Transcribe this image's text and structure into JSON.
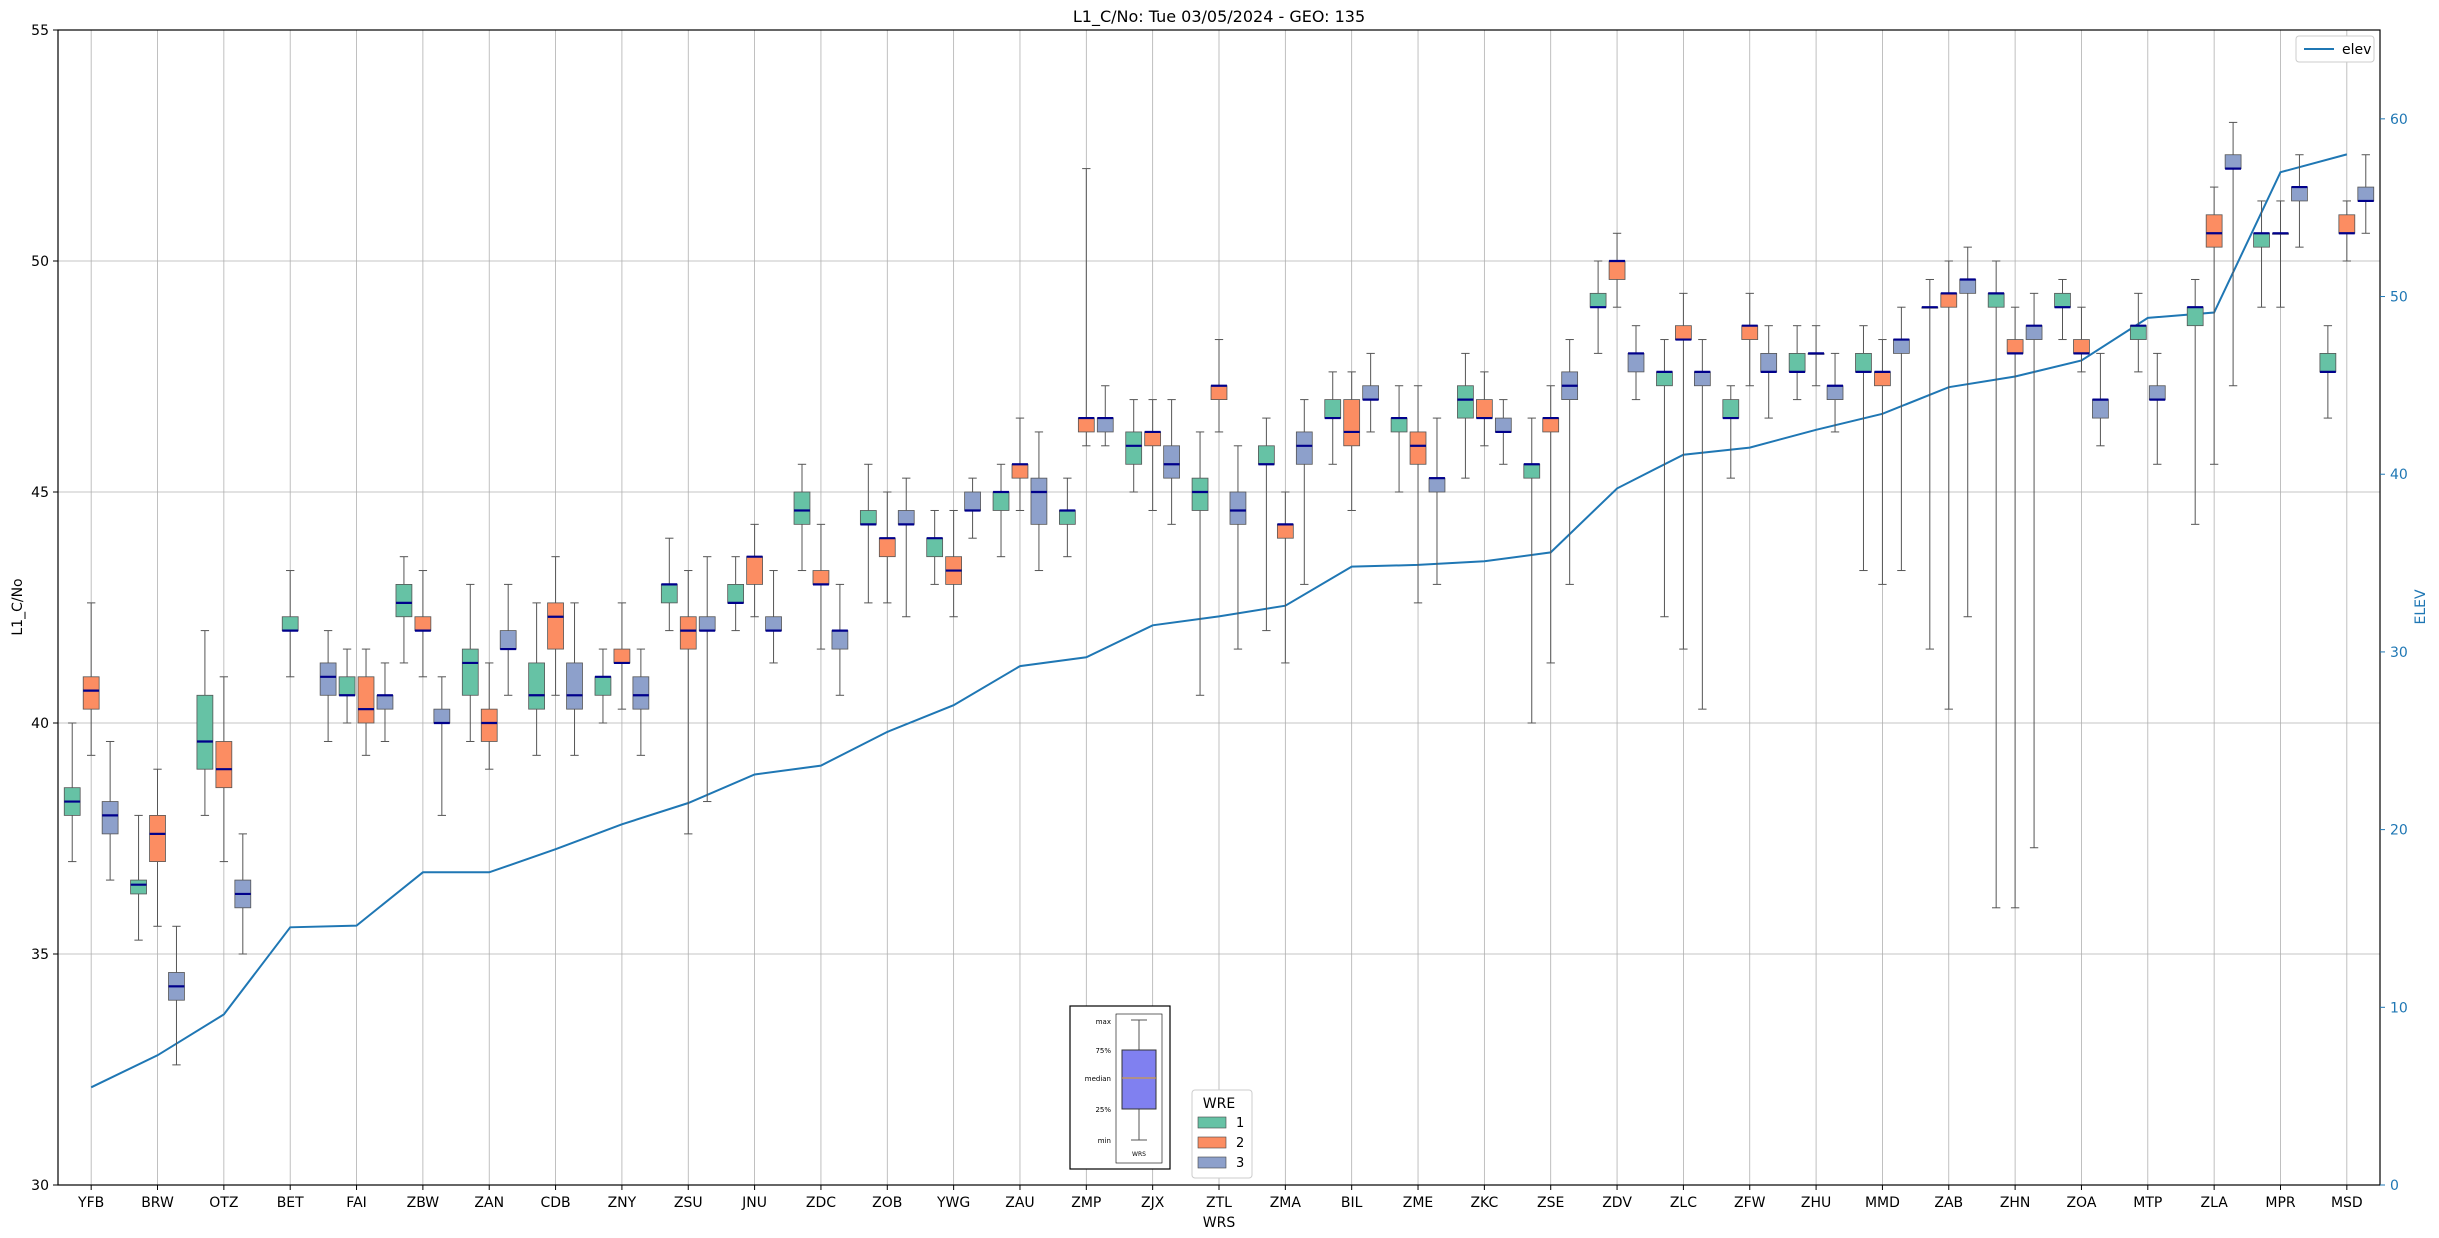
{
  "chart_data": {
    "type": "box",
    "title": "L1_C/No: Tue 03/05/2024 - GEO: 135",
    "xlabel": "WRS",
    "ylabel": "L1_C/No",
    "y2label": "ELEV",
    "ylim": [
      30,
      55
    ],
    "y2lim": [
      0,
      65
    ],
    "yticks": [
      "30",
      "35",
      "40",
      "45",
      "50",
      "55"
    ],
    "y2ticks": [
      "0",
      "10",
      "20",
      "30",
      "40",
      "50",
      "60"
    ],
    "grid": true,
    "categories": [
      "YFB",
      "BRW",
      "OTZ",
      "BET",
      "FAI",
      "ZBW",
      "ZAN",
      "CDB",
      "ZNY",
      "ZSU",
      "JNU",
      "ZDC",
      "ZOB",
      "YWG",
      "ZAU",
      "ZMP",
      "ZJX",
      "ZTL",
      "ZMA",
      "BIL",
      "ZME",
      "ZKC",
      "ZSE",
      "ZDV",
      "ZLC",
      "ZFW",
      "ZHU",
      "MMD",
      "ZAB",
      "ZHN",
      "ZOA",
      "MTP",
      "ZLA",
      "MPR",
      "MSD"
    ],
    "elev_series": {
      "name": "elev",
      "color": "#1f77b4",
      "values": [
        5.5,
        7.3,
        9.6,
        14.5,
        14.6,
        17.6,
        17.6,
        18.9,
        20.3,
        21.5,
        23.1,
        23.6,
        25.5,
        27.0,
        29.2,
        29.7,
        31.5,
        32.0,
        32.6,
        34.8,
        34.9,
        35.1,
        35.6,
        39.2,
        41.1,
        41.5,
        42.5,
        43.4,
        44.9,
        45.5,
        46.4,
        48.8,
        49.1,
        57.0,
        58.0
      ]
    },
    "legend_wre": {
      "title": "WRE",
      "entries": [
        {
          "label": "1",
          "color": "#66c2a5"
        },
        {
          "label": "2",
          "color": "#fc8d62"
        },
        {
          "label": "3",
          "color": "#8da0cb"
        }
      ],
      "placement": "bottom-center"
    },
    "legend_elev": {
      "label": "elev",
      "placement": "top-right"
    },
    "key_labels": [
      "max",
      "75%",
      "median",
      "25%",
      "min",
      "WRS"
    ],
    "boxes": [
      {
        "station": "YFB",
        "wre": 1,
        "min": 37.0,
        "q1": 38.0,
        "median": 38.3,
        "q3": 38.6,
        "max": 40.0
      },
      {
        "station": "YFB",
        "wre": 2,
        "min": 39.3,
        "q1": 40.3,
        "median": 40.7,
        "q3": 41.0,
        "max": 42.6
      },
      {
        "station": "YFB",
        "wre": 3,
        "min": 36.6,
        "q1": 37.6,
        "median": 38.0,
        "q3": 38.3,
        "max": 39.6
      },
      {
        "station": "BRW",
        "wre": 1,
        "min": 35.3,
        "q1": 36.3,
        "median": 36.5,
        "q3": 36.6,
        "max": 38.0
      },
      {
        "station": "BRW",
        "wre": 2,
        "min": 35.6,
        "q1": 37.0,
        "median": 37.6,
        "q3": 38.0,
        "max": 39.0
      },
      {
        "station": "BRW",
        "wre": 3,
        "min": 32.6,
        "q1": 34.0,
        "median": 34.3,
        "q3": 34.6,
        "max": 35.6
      },
      {
        "station": "OTZ",
        "wre": 1,
        "min": 38.0,
        "q1": 39.0,
        "median": 39.6,
        "q3": 40.6,
        "max": 42.0
      },
      {
        "station": "OTZ",
        "wre": 2,
        "min": 37.0,
        "q1": 38.6,
        "median": 39.0,
        "q3": 39.6,
        "max": 41.0
      },
      {
        "station": "OTZ",
        "wre": 3,
        "min": 35.0,
        "q1": 36.0,
        "median": 36.3,
        "q3": 36.6,
        "max": 37.6
      },
      {
        "station": "BET",
        "wre": 1,
        "min": 41.0,
        "q1": 42.0,
        "median": 42.0,
        "q3": 42.3,
        "max": 43.3
      },
      {
        "station": "FAI",
        "wre": 3,
        "min": 39.6,
        "q1": 40.6,
        "median": 41.0,
        "q3": 41.3,
        "max": 42.0
      },
      {
        "station": "FAI",
        "wre": 1,
        "min": 40.0,
        "q1": 40.6,
        "median": 40.6,
        "q3": 41.0,
        "max": 41.6
      },
      {
        "station": "FAI",
        "wre": 2,
        "min": 39.3,
        "q1": 40.0,
        "median": 40.3,
        "q3": 41.0,
        "max": 41.6
      },
      {
        "station": "FAI",
        "wre": 3,
        "min": 39.6,
        "q1": 40.3,
        "median": 40.6,
        "q3": 40.6,
        "max": 41.3
      },
      {
        "station": "ZBW",
        "wre": 1,
        "min": 41.3,
        "q1": 42.3,
        "median": 42.6,
        "q3": 43.0,
        "max": 43.6
      },
      {
        "station": "ZBW",
        "wre": 2,
        "min": 41.0,
        "q1": 42.0,
        "median": 42.0,
        "q3": 42.3,
        "max": 43.3
      },
      {
        "station": "ZBW",
        "wre": 3,
        "min": 38.0,
        "q1": 40.0,
        "median": 40.0,
        "q3": 40.3,
        "max": 41.0
      },
      {
        "station": "ZAN",
        "wre": 1,
        "min": 39.6,
        "q1": 40.6,
        "median": 41.3,
        "q3": 41.6,
        "max": 43.0
      },
      {
        "station": "ZAN",
        "wre": 2,
        "min": 39.0,
        "q1": 39.6,
        "median": 40.0,
        "q3": 40.3,
        "max": 41.3
      },
      {
        "station": "ZAN",
        "wre": 3,
        "min": 40.6,
        "q1": 41.6,
        "median": 41.6,
        "q3": 42.0,
        "max": 43.0
      },
      {
        "station": "CDB",
        "wre": 1,
        "min": 39.3,
        "q1": 40.3,
        "median": 40.6,
        "q3": 41.3,
        "max": 42.6
      },
      {
        "station": "CDB",
        "wre": 2,
        "min": 40.6,
        "q1": 41.6,
        "median": 42.3,
        "q3": 42.6,
        "max": 43.6
      },
      {
        "station": "CDB",
        "wre": 3,
        "min": 39.3,
        "q1": 40.3,
        "median": 40.6,
        "q3": 41.3,
        "max": 42.6
      },
      {
        "station": "ZNY",
        "wre": 1,
        "min": 40.0,
        "q1": 40.6,
        "median": 41.0,
        "q3": 41.0,
        "max": 41.6
      },
      {
        "station": "ZNY",
        "wre": 2,
        "min": 40.3,
        "q1": 41.3,
        "median": 41.3,
        "q3": 41.6,
        "max": 42.6
      },
      {
        "station": "ZNY",
        "wre": 3,
        "min": 39.3,
        "q1": 40.3,
        "median": 40.6,
        "q3": 41.0,
        "max": 41.6
      },
      {
        "station": "ZSU",
        "wre": 1,
        "min": 42.0,
        "q1": 42.6,
        "median": 43.0,
        "q3": 43.0,
        "max": 44.0
      },
      {
        "station": "ZSU",
        "wre": 2,
        "min": 37.6,
        "q1": 41.6,
        "median": 42.0,
        "q3": 42.3,
        "max": 43.3
      },
      {
        "station": "ZSU",
        "wre": 3,
        "min": 38.3,
        "q1": 42.0,
        "median": 42.0,
        "q3": 42.3,
        "max": 43.6
      },
      {
        "station": "JNU",
        "wre": 1,
        "min": 42.0,
        "q1": 42.6,
        "median": 42.6,
        "q3": 43.0,
        "max": 43.6
      },
      {
        "station": "JNU",
        "wre": 2,
        "min": 42.3,
        "q1": 43.0,
        "median": 43.6,
        "q3": 43.6,
        "max": 44.3
      },
      {
        "station": "JNU",
        "wre": 3,
        "min": 41.3,
        "q1": 42.0,
        "median": 42.0,
        "q3": 42.3,
        "max": 43.3
      },
      {
        "station": "ZDC",
        "wre": 1,
        "min": 43.3,
        "q1": 44.3,
        "median": 44.6,
        "q3": 45.0,
        "max": 45.6
      },
      {
        "station": "ZDC",
        "wre": 2,
        "min": 41.6,
        "q1": 43.0,
        "median": 43.0,
        "q3": 43.3,
        "max": 44.3
      },
      {
        "station": "ZDC",
        "wre": 3,
        "min": 40.6,
        "q1": 41.6,
        "median": 42.0,
        "q3": 42.0,
        "max": 43.0
      },
      {
        "station": "ZOB",
        "wre": 1,
        "min": 42.6,
        "q1": 44.3,
        "median": 44.3,
        "q3": 44.6,
        "max": 45.6
      },
      {
        "station": "ZOB",
        "wre": 2,
        "min": 42.6,
        "q1": 43.6,
        "median": 44.0,
        "q3": 44.0,
        "max": 45.0
      },
      {
        "station": "ZOB",
        "wre": 3,
        "min": 42.3,
        "q1": 44.3,
        "median": 44.3,
        "q3": 44.6,
        "max": 45.3
      },
      {
        "station": "YWG",
        "wre": 1,
        "min": 43.0,
        "q1": 43.6,
        "median": 44.0,
        "q3": 44.0,
        "max": 44.6
      },
      {
        "station": "YWG",
        "wre": 2,
        "min": 42.3,
        "q1": 43.0,
        "median": 43.3,
        "q3": 43.6,
        "max": 44.6
      },
      {
        "station": "YWG",
        "wre": 3,
        "min": 44.0,
        "q1": 44.6,
        "median": 44.6,
        "q3": 45.0,
        "max": 45.3
      },
      {
        "station": "ZAU",
        "wre": 1,
        "min": 43.6,
        "q1": 44.6,
        "median": 45.0,
        "q3": 45.0,
        "max": 45.6
      },
      {
        "station": "ZAU",
        "wre": 2,
        "min": 44.6,
        "q1": 45.3,
        "median": 45.6,
        "q3": 45.6,
        "max": 46.6
      },
      {
        "station": "ZAU",
        "wre": 3,
        "min": 43.3,
        "q1": 44.3,
        "median": 45.0,
        "q3": 45.3,
        "max": 46.3
      },
      {
        "station": "ZMP",
        "wre": 1,
        "min": 43.6,
        "q1": 44.3,
        "median": 44.6,
        "q3": 44.6,
        "max": 45.3
      },
      {
        "station": "ZMP",
        "wre": 2,
        "min": 46.0,
        "q1": 46.3,
        "median": 46.6,
        "q3": 46.6,
        "max": 52.0
      },
      {
        "station": "ZMP",
        "wre": 3,
        "min": 46.0,
        "q1": 46.3,
        "median": 46.6,
        "q3": 46.6,
        "max": 47.3
      },
      {
        "station": "ZJX",
        "wre": 1,
        "min": 45.0,
        "q1": 45.6,
        "median": 46.0,
        "q3": 46.3,
        "max": 47.0
      },
      {
        "station": "ZJX",
        "wre": 2,
        "min": 44.6,
        "q1": 46.0,
        "median": 46.3,
        "q3": 46.3,
        "max": 47.0
      },
      {
        "station": "ZJX",
        "wre": 3,
        "min": 44.3,
        "q1": 45.3,
        "median": 45.6,
        "q3": 46.0,
        "max": 47.0
      },
      {
        "station": "ZTL",
        "wre": 1,
        "min": 40.6,
        "q1": 44.6,
        "median": 45.0,
        "q3": 45.3,
        "max": 46.3
      },
      {
        "station": "ZTL",
        "wre": 2,
        "min": 46.3,
        "q1": 47.0,
        "median": 47.3,
        "q3": 47.3,
        "max": 48.3
      },
      {
        "station": "ZTL",
        "wre": 3,
        "min": 41.6,
        "q1": 44.3,
        "median": 44.6,
        "q3": 45.0,
        "max": 46.0
      },
      {
        "station": "ZMA",
        "wre": 1,
        "min": 42.0,
        "q1": 45.6,
        "median": 45.6,
        "q3": 46.0,
        "max": 46.6
      },
      {
        "station": "ZMA",
        "wre": 2,
        "min": 41.3,
        "q1": 44.0,
        "median": 44.3,
        "q3": 44.3,
        "max": 45.0
      },
      {
        "station": "ZMA",
        "wre": 3,
        "min": 43.0,
        "q1": 45.6,
        "median": 46.0,
        "q3": 46.3,
        "max": 47.0
      },
      {
        "station": "BIL",
        "wre": 1,
        "min": 45.6,
        "q1": 46.6,
        "median": 46.6,
        "q3": 47.0,
        "max": 47.6
      },
      {
        "station": "BIL",
        "wre": 2,
        "min": 44.6,
        "q1": 46.0,
        "median": 46.3,
        "q3": 47.0,
        "max": 47.6
      },
      {
        "station": "BIL",
        "wre": 3,
        "min": 46.3,
        "q1": 47.0,
        "median": 47.0,
        "q3": 47.3,
        "max": 48.0
      },
      {
        "station": "ZME",
        "wre": 1,
        "min": 45.0,
        "q1": 46.3,
        "median": 46.6,
        "q3": 46.6,
        "max": 47.3
      },
      {
        "station": "ZME",
        "wre": 2,
        "min": 42.6,
        "q1": 45.6,
        "median": 46.0,
        "q3": 46.3,
        "max": 47.3
      },
      {
        "station": "ZME",
        "wre": 3,
        "min": 43.0,
        "q1": 45.0,
        "median": 45.3,
        "q3": 45.3,
        "max": 46.6
      },
      {
        "station": "ZKC",
        "wre": 1,
        "min": 45.3,
        "q1": 46.6,
        "median": 47.0,
        "q3": 47.3,
        "max": 48.0
      },
      {
        "station": "ZKC",
        "wre": 2,
        "min": 46.0,
        "q1": 46.6,
        "median": 46.6,
        "q3": 47.0,
        "max": 47.6
      },
      {
        "station": "ZKC",
        "wre": 3,
        "min": 45.6,
        "q1": 46.3,
        "median": 46.3,
        "q3": 46.6,
        "max": 47.0
      },
      {
        "station": "ZSE",
        "wre": 1,
        "min": 40.0,
        "q1": 45.3,
        "median": 45.6,
        "q3": 45.6,
        "max": 46.6
      },
      {
        "station": "ZSE",
        "wre": 2,
        "min": 41.3,
        "q1": 46.3,
        "median": 46.6,
        "q3": 46.6,
        "max": 47.3
      },
      {
        "station": "ZSE",
        "wre": 3,
        "min": 43.0,
        "q1": 47.0,
        "median": 47.3,
        "q3": 47.6,
        "max": 48.3
      },
      {
        "station": "ZDV",
        "wre": 1,
        "min": 48.0,
        "q1": 49.0,
        "median": 49.0,
        "q3": 49.3,
        "max": 50.0
      },
      {
        "station": "ZDV",
        "wre": 2,
        "min": 49.0,
        "q1": 49.6,
        "median": 50.0,
        "q3": 50.0,
        "max": 50.6
      },
      {
        "station": "ZDV",
        "wre": 3,
        "min": 47.0,
        "q1": 47.6,
        "median": 48.0,
        "q3": 48.0,
        "max": 48.6
      },
      {
        "station": "ZLC",
        "wre": 1,
        "min": 42.3,
        "q1": 47.3,
        "median": 47.6,
        "q3": 47.6,
        "max": 48.3
      },
      {
        "station": "ZLC",
        "wre": 2,
        "min": 41.6,
        "q1": 48.3,
        "median": 48.3,
        "q3": 48.6,
        "max": 49.3
      },
      {
        "station": "ZLC",
        "wre": 3,
        "min": 40.3,
        "q1": 47.3,
        "median": 47.6,
        "q3": 47.6,
        "max": 48.3
      },
      {
        "station": "ZFW",
        "wre": 1,
        "min": 45.3,
        "q1": 46.6,
        "median": 46.6,
        "q3": 47.0,
        "max": 47.3
      },
      {
        "station": "ZFW",
        "wre": 2,
        "min": 47.3,
        "q1": 48.3,
        "median": 48.6,
        "q3": 48.6,
        "max": 49.3
      },
      {
        "station": "ZFW",
        "wre": 3,
        "min": 46.6,
        "q1": 47.6,
        "median": 47.6,
        "q3": 48.0,
        "max": 48.6
      },
      {
        "station": "ZHU",
        "wre": 1,
        "min": 47.0,
        "q1": 47.6,
        "median": 47.6,
        "q3": 48.0,
        "max": 48.6
      },
      {
        "station": "ZHU",
        "wre": 2,
        "min": 47.3,
        "q1": 48.0,
        "median": 48.0,
        "q3": 48.0,
        "max": 48.6
      },
      {
        "station": "ZHU",
        "wre": 3,
        "min": 46.3,
        "q1": 47.0,
        "median": 47.3,
        "q3": 47.3,
        "max": 48.0
      },
      {
        "station": "MMD",
        "wre": 1,
        "min": 43.3,
        "q1": 47.6,
        "median": 47.6,
        "q3": 48.0,
        "max": 48.6
      },
      {
        "station": "MMD",
        "wre": 2,
        "min": 43.0,
        "q1": 47.3,
        "median": 47.6,
        "q3": 47.6,
        "max": 48.3
      },
      {
        "station": "MMD",
        "wre": 3,
        "min": 43.3,
        "q1": 48.0,
        "median": 48.3,
        "q3": 48.3,
        "max": 49.0
      },
      {
        "station": "ZAB",
        "wre": 1,
        "min": 41.6,
        "q1": 49.0,
        "median": 49.0,
        "q3": 49.0,
        "max": 49.6
      },
      {
        "station": "ZAB",
        "wre": 2,
        "min": 40.3,
        "q1": 49.0,
        "median": 49.3,
        "q3": 49.3,
        "max": 50.0
      },
      {
        "station": "ZAB",
        "wre": 3,
        "min": 42.3,
        "q1": 49.3,
        "median": 49.6,
        "q3": 49.6,
        "max": 50.3
      },
      {
        "station": "ZHN",
        "wre": 1,
        "min": 36.0,
        "q1": 49.0,
        "median": 49.3,
        "q3": 49.3,
        "max": 50.0
      },
      {
        "station": "ZHN",
        "wre": 2,
        "min": 36.0,
        "q1": 48.0,
        "median": 48.0,
        "q3": 48.3,
        "max": 49.0
      },
      {
        "station": "ZHN",
        "wre": 3,
        "min": 37.3,
        "q1": 48.3,
        "median": 48.6,
        "q3": 48.6,
        "max": 49.3
      },
      {
        "station": "ZOA",
        "wre": 1,
        "min": 48.3,
        "q1": 49.0,
        "median": 49.0,
        "q3": 49.3,
        "max": 49.6
      },
      {
        "station": "ZOA",
        "wre": 2,
        "min": 47.6,
        "q1": 48.0,
        "median": 48.0,
        "q3": 48.3,
        "max": 49.0
      },
      {
        "station": "ZOA",
        "wre": 3,
        "min": 46.0,
        "q1": 46.6,
        "median": 47.0,
        "q3": 47.0,
        "max": 48.0
      },
      {
        "station": "MTP",
        "wre": 1,
        "min": 47.6,
        "q1": 48.3,
        "median": 48.6,
        "q3": 48.6,
        "max": 49.3
      },
      {
        "station": "MTP",
        "wre": 3,
        "min": 45.6,
        "q1": 47.0,
        "median": 47.0,
        "q3": 47.3,
        "max": 48.0
      },
      {
        "station": "ZLA",
        "wre": 1,
        "min": 44.3,
        "q1": 48.6,
        "median": 49.0,
        "q3": 49.0,
        "max": 49.6
      },
      {
        "station": "ZLA",
        "wre": 2,
        "min": 45.6,
        "q1": 50.3,
        "median": 50.6,
        "q3": 51.0,
        "max": 51.6
      },
      {
        "station": "ZLA",
        "wre": 3,
        "min": 47.3,
        "q1": 52.0,
        "median": 52.0,
        "q3": 52.3,
        "max": 53.0
      },
      {
        "station": "MPR",
        "wre": 1,
        "min": 49.0,
        "q1": 50.3,
        "median": 50.6,
        "q3": 50.6,
        "max": 51.3
      },
      {
        "station": "MPR",
        "wre": 2,
        "min": 49.0,
        "q1": 50.6,
        "median": 50.6,
        "q3": 50.6,
        "max": 51.3
      },
      {
        "station": "MPR",
        "wre": 3,
        "min": 50.3,
        "q1": 51.3,
        "median": 51.6,
        "q3": 51.6,
        "max": 52.3
      },
      {
        "station": "MSD",
        "wre": 1,
        "min": 46.6,
        "q1": 47.6,
        "median": 47.6,
        "q3": 48.0,
        "max": 48.6
      },
      {
        "station": "MSD",
        "wre": 2,
        "min": 50.0,
        "q1": 50.6,
        "median": 50.6,
        "q3": 51.0,
        "max": 51.3
      },
      {
        "station": "MSD",
        "wre": 3,
        "min": 50.6,
        "q1": 51.3,
        "median": 51.3,
        "q3": 51.6,
        "max": 52.3
      }
    ],
    "colors": {
      "wre1": "#66c2a5",
      "wre2": "#fc8d62",
      "wre3": "#8da0cb",
      "median": "#00008b",
      "elev": "#1f77b4",
      "grid": "#b0b0b0",
      "whisker": "#555555"
    }
  }
}
